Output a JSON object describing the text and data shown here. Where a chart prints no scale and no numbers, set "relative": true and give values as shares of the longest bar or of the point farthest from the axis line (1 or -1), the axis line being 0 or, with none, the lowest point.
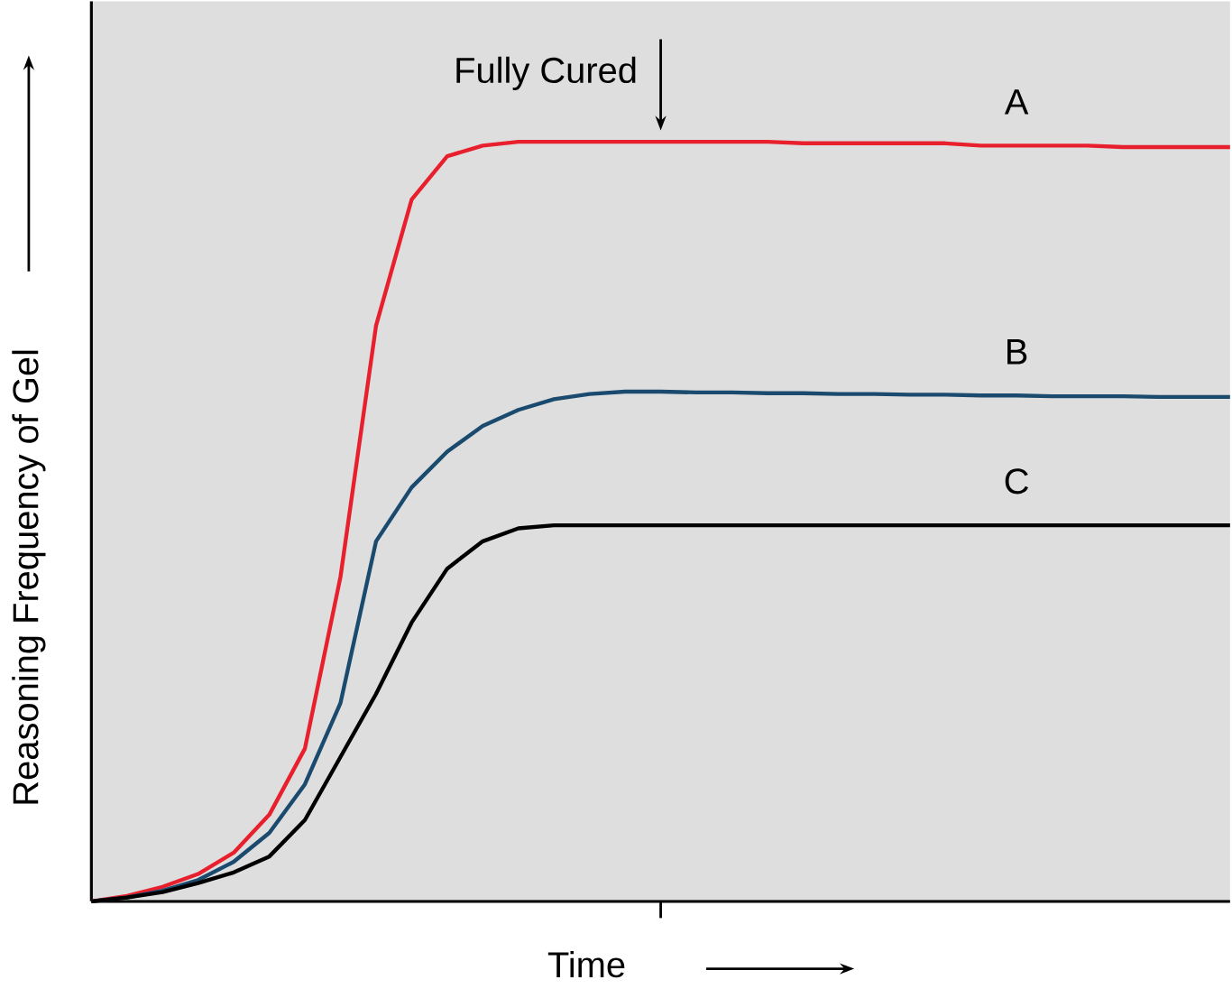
{
  "chart_data": {
    "type": "line",
    "relative": true,
    "xlabel": "Time",
    "ylabel": "Reasoning Frequency of Gel",
    "categories": [
      null,
      null,
      null,
      null,
      null,
      null,
      null,
      null,
      null,
      null,
      null,
      null,
      null,
      null,
      null,
      null,
      null,
      null,
      null,
      null,
      null,
      null,
      null,
      null,
      null,
      null,
      null,
      null,
      null,
      null,
      null,
      null,
      null
    ],
    "series": [
      {
        "name": "A",
        "color": "#e8202e",
        "values": [
          0,
          0.007,
          0.019,
          0.036,
          0.064,
          0.114,
          0.201,
          0.427,
          0.758,
          0.924,
          0.981,
          0.995,
          1,
          1,
          1,
          1,
          1,
          1,
          1,
          1,
          0.998,
          0.998,
          0.998,
          0.998,
          0.998,
          0.995,
          0.995,
          0.995,
          0.995,
          0.993,
          0.993,
          0.993,
          0.993
        ]
      },
      {
        "name": "B",
        "color": "#1a4a6e",
        "values": [
          0,
          0.005,
          0.014,
          0.028,
          0.052,
          0.09,
          0.154,
          0.261,
          0.474,
          0.545,
          0.592,
          0.626,
          0.647,
          0.661,
          0.668,
          0.671,
          0.671,
          0.67,
          0.67,
          0.669,
          0.669,
          0.668,
          0.668,
          0.667,
          0.667,
          0.666,
          0.666,
          0.665,
          0.665,
          0.665,
          0.664,
          0.664,
          0.664
        ]
      },
      {
        "name": "C",
        "color": "#000000",
        "values": [
          0,
          0.005,
          0.012,
          0.024,
          0.038,
          0.059,
          0.107,
          0.19,
          0.273,
          0.367,
          0.438,
          0.474,
          0.491,
          0.495,
          0.495,
          0.495,
          0.495,
          0.495,
          0.495,
          0.495,
          0.495,
          0.495,
          0.495,
          0.495,
          0.495,
          0.495,
          0.495,
          0.495,
          0.495,
          0.495,
          0.495,
          0.495,
          0.495
        ]
      }
    ],
    "annotations": [
      "Fully Cured"
    ],
    "marker": "none",
    "line_style": "solid"
  }
}
